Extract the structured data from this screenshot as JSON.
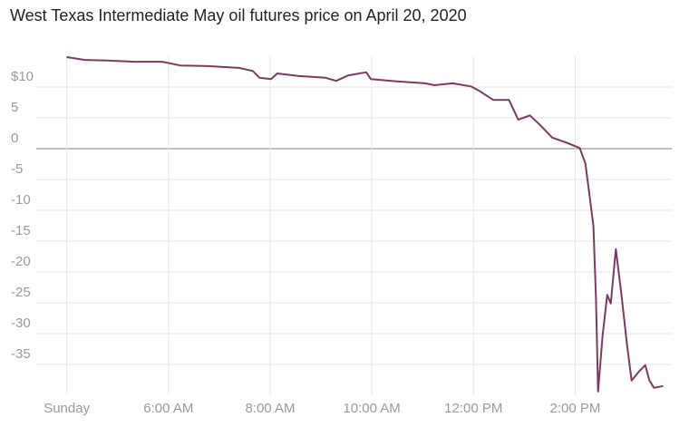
{
  "chart_data": {
    "type": "line",
    "title": "West Texas Intermediate May oil futures price on April 20, 2020",
    "x": [
      4.0,
      4.36,
      4.8,
      5.34,
      5.88,
      6.23,
      6.77,
      7.39,
      7.66,
      7.79,
      8.02,
      8.14,
      8.55,
      9.09,
      9.3,
      9.54,
      9.89,
      9.98,
      10.52,
      11.05,
      11.23,
      11.59,
      11.95,
      12.13,
      12.39,
      12.7,
      12.88,
      13.11,
      13.29,
      13.55,
      13.82,
      14.09,
      14.2,
      14.27,
      14.36,
      14.41,
      14.45,
      14.54,
      14.63,
      14.7,
      14.8,
      14.91,
      15.02,
      15.11,
      15.25,
      15.38,
      15.46,
      15.55,
      15.73
    ],
    "series": [
      {
        "color": "#7b3a62",
        "values": [
          14.85,
          14.4,
          14.3,
          14.1,
          14.1,
          13.5,
          13.4,
          13.1,
          12.6,
          11.5,
          11.3,
          12.2,
          11.8,
          11.5,
          11.0,
          11.9,
          12.4,
          11.3,
          10.9,
          10.6,
          10.3,
          10.6,
          10.1,
          9.3,
          7.9,
          7.9,
          4.7,
          5.4,
          4.0,
          1.8,
          1.0,
          0.1,
          -2.4,
          -6.8,
          -12.6,
          -24.4,
          -39.4,
          -30.3,
          -23.7,
          -25.1,
          -16.3,
          -23.7,
          -31.8,
          -37.6,
          -36.2,
          -35.1,
          -37.6,
          -38.8,
          -38.5
        ]
      }
    ],
    "xlim": [
      3.4,
      15.9
    ],
    "xticks": [
      {
        "value": 4,
        "label": "Sunday"
      },
      {
        "value": 6,
        "label": "6:00 AM"
      },
      {
        "value": 8,
        "label": "8:00 AM"
      },
      {
        "value": 10,
        "label": "10:00 AM"
      },
      {
        "value": 12,
        "label": "12:00 PM"
      },
      {
        "value": 14,
        "label": "2:00 PM"
      }
    ],
    "ylim": [
      -40,
      15
    ],
    "yticks": [
      {
        "value": 10,
        "label": "$10"
      },
      5,
      0,
      -5,
      -10,
      -15,
      -20,
      -25,
      -30,
      -35
    ],
    "grid": true
  }
}
